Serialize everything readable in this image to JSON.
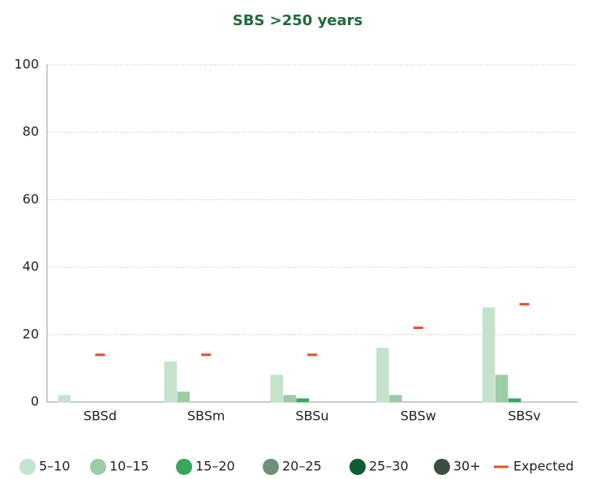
{
  "chart_data": {
    "type": "bar",
    "title": "SBS >250 years",
    "categories": [
      "SBSd",
      "SBSm",
      "SBSu",
      "SBSw",
      "SBSv"
    ],
    "series": [
      {
        "name": "5–10",
        "color": "#c5e3cc",
        "values": [
          2,
          12,
          8,
          16,
          28
        ]
      },
      {
        "name": "10–15",
        "color": "#9ccca6",
        "values": [
          0,
          3,
          2,
          2,
          8
        ]
      },
      {
        "name": "15–20",
        "color": "#3aa65f",
        "values": [
          0,
          0,
          1,
          0,
          1
        ]
      },
      {
        "name": "20–25",
        "color": "#6e8f78",
        "values": [
          0,
          0,
          0,
          0,
          0
        ]
      },
      {
        "name": "25–30",
        "color": "#0f5c34",
        "values": [
          0,
          0,
          0,
          0,
          0
        ]
      },
      {
        "name": "30+",
        "color": "#3a4f40",
        "values": [
          0,
          0,
          0,
          0,
          0
        ]
      },
      {
        "name": "Expected",
        "color": "#e0522d",
        "style": "dash",
        "values": [
          14,
          14,
          14,
          22,
          29
        ]
      }
    ],
    "ylim": [
      0,
      100
    ],
    "yticks": [
      0,
      20,
      40,
      60,
      80,
      100
    ],
    "grid": true,
    "legend": "bottom"
  }
}
